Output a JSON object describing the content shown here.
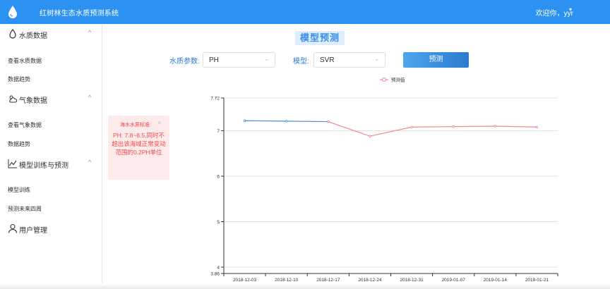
{
  "header": {
    "app_title": "红树林生态水质预测系统",
    "user_greeting": "欢迎你，yyr",
    "caret": "▾",
    "bg_color": "#2b92f2"
  },
  "sidebar": {
    "groups": [
      {
        "label": "水质数据",
        "icon": "droplet-icon",
        "arrow": "^",
        "items": [
          "查看水质数据",
          "数据趋势"
        ]
      },
      {
        "label": "气象数据",
        "icon": "cloud-sun-icon",
        "arrow": "^",
        "items": [
          "查看气象数据",
          "数据趋势"
        ]
      },
      {
        "label": "模型训练与预测",
        "icon": "chart-line-icon",
        "arrow": "^",
        "items": [
          "模型训练",
          "预测未来四周"
        ]
      },
      {
        "label": "用户管理",
        "icon": "user-icon"
      }
    ]
  },
  "main": {
    "title": "模型预测",
    "param_label": "水质参数:",
    "param_value": "PH",
    "model_label": "模型:",
    "model_value": "SVR",
    "predict_button": "预测"
  },
  "notice": {
    "title": "海水水质标准:",
    "close": "×",
    "body": "PH: 7.8~8.5,同时不超出该海域正常变动范围的0.2PH单位"
  },
  "chart_data": {
    "type": "line",
    "categories": [
      "2018-12-03",
      "2018-12-10",
      "2018-12-17",
      "2018-12-24",
      "2018-12-31",
      "2019-01-07",
      "2019-01-14",
      "2019-01-21"
    ],
    "series": [
      {
        "name": "",
        "color": "#4a8fd8",
        "values": [
          7.22,
          7.21,
          7.2,
          null,
          null,
          null,
          null,
          null
        ]
      },
      {
        "name": "预测值",
        "color": "#f08a8a",
        "values": [
          null,
          null,
          7.2,
          6.88,
          7.08,
          7.09,
          7.1,
          7.08
        ]
      }
    ],
    "y_ticks": [
      "3.86",
      "4",
      "5",
      "6",
      "7",
      "7.72"
    ],
    "ylim": [
      3.86,
      7.72
    ],
    "grid": true,
    "legend": "top-center"
  }
}
